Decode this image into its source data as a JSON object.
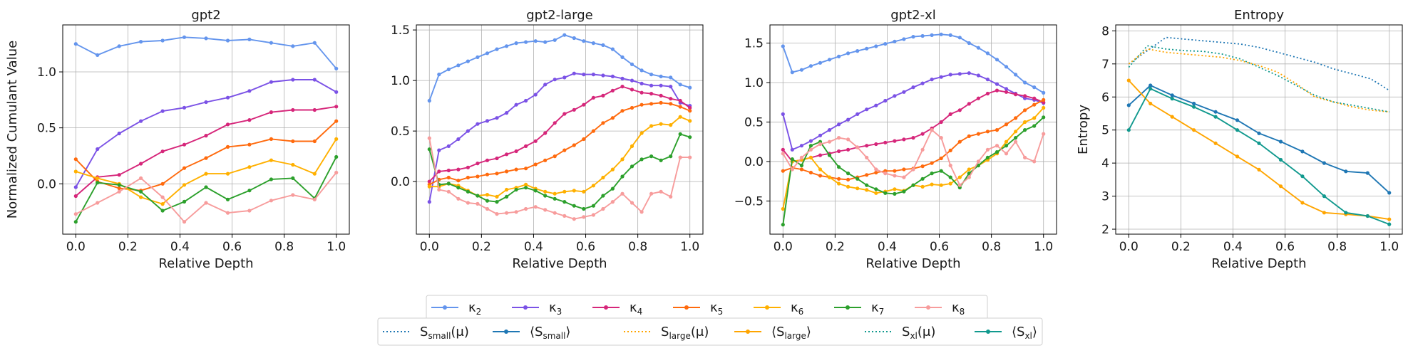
{
  "chart_data": [
    {
      "type": "line",
      "title": "gpt2",
      "xlabel": "Relative Depth",
      "ylabel": "Normalized Cumulant Value",
      "xlim": [
        -0.05,
        1.05
      ],
      "ylim": [
        -0.45,
        1.42
      ],
      "xticks": [
        0.0,
        0.2,
        0.4,
        0.6,
        0.8,
        1.0
      ],
      "xtick_labels": [
        "0.0",
        "0.2",
        "0.4",
        "0.6",
        "0.8",
        "1.0"
      ],
      "yticks": [
        0.0,
        0.5,
        1.0
      ],
      "ytick_labels": [
        "0.0",
        "0.5",
        "1.0"
      ],
      "grid": true,
      "series": [
        {
          "name": "κ2",
          "values": [
            1.25,
            1.15,
            1.23,
            1.27,
            1.28,
            1.31,
            1.3,
            1.28,
            1.29,
            1.26,
            1.23,
            1.26,
            1.03
          ]
        },
        {
          "name": "κ3",
          "values": [
            -0.03,
            0.31,
            0.45,
            0.56,
            0.65,
            0.68,
            0.73,
            0.77,
            0.83,
            0.91,
            0.93,
            0.93,
            0.82
          ]
        },
        {
          "name": "κ4",
          "values": [
            -0.11,
            0.06,
            0.08,
            0.18,
            0.29,
            0.35,
            0.43,
            0.53,
            0.57,
            0.64,
            0.66,
            0.66,
            0.69
          ]
        },
        {
          "name": "κ5",
          "values": [
            0.22,
            0.02,
            -0.04,
            -0.06,
            0.0,
            0.14,
            0.23,
            0.33,
            0.35,
            0.4,
            0.38,
            0.38,
            0.56
          ]
        },
        {
          "name": "κ6",
          "values": [
            0.11,
            0.05,
            0.0,
            -0.12,
            -0.18,
            -0.01,
            0.09,
            0.09,
            0.15,
            0.21,
            0.17,
            0.09,
            0.4
          ]
        },
        {
          "name": "κ7",
          "values": [
            -0.34,
            0.01,
            -0.01,
            -0.07,
            -0.24,
            -0.16,
            -0.03,
            -0.14,
            -0.06,
            0.04,
            0.05,
            -0.13,
            0.24
          ]
        },
        {
          "name": "κ8",
          "values": [
            -0.27,
            -0.17,
            -0.07,
            0.05,
            -0.12,
            -0.34,
            -0.17,
            -0.26,
            -0.24,
            -0.15,
            -0.1,
            -0.14,
            0.1
          ]
        }
      ]
    },
    {
      "type": "line",
      "title": "gpt2-large",
      "xlabel": "Relative Depth",
      "ylabel": "",
      "xlim": [
        -0.05,
        1.05
      ],
      "ylim": [
        -0.52,
        1.55
      ],
      "xticks": [
        0.0,
        0.2,
        0.4,
        0.6,
        0.8,
        1.0
      ],
      "xtick_labels": [
        "0.0",
        "0.2",
        "0.4",
        "0.6",
        "0.8",
        "1.0"
      ],
      "yticks": [
        0.0,
        0.5,
        1.0,
        1.5
      ],
      "ytick_labels": [
        "0.0",
        "0.5",
        "1.0",
        "1.5"
      ],
      "grid": true,
      "series": [
        {
          "name": "κ2",
          "values": [
            0.8,
            1.06,
            1.11,
            1.15,
            1.19,
            1.23,
            1.27,
            1.31,
            1.34,
            1.37,
            1.38,
            1.39,
            1.38,
            1.4,
            1.45,
            1.42,
            1.39,
            1.37,
            1.35,
            1.31,
            1.23,
            1.16,
            1.1,
            1.06,
            1.04,
            1.03,
            0.96,
            0.93
          ]
        },
        {
          "name": "κ3",
          "values": [
            -0.2,
            0.31,
            0.35,
            0.42,
            0.5,
            0.57,
            0.6,
            0.63,
            0.68,
            0.76,
            0.8,
            0.86,
            0.96,
            1.01,
            1.03,
            1.07,
            1.06,
            1.06,
            1.05,
            1.04,
            1.02,
            1.0,
            0.97,
            0.95,
            0.95,
            0.94,
            0.78,
            0.75
          ]
        },
        {
          "name": "κ4",
          "values": [
            0.0,
            0.1,
            0.11,
            0.12,
            0.14,
            0.18,
            0.21,
            0.23,
            0.27,
            0.3,
            0.35,
            0.4,
            0.48,
            0.58,
            0.67,
            0.71,
            0.76,
            0.83,
            0.85,
            0.9,
            0.94,
            0.91,
            0.88,
            0.87,
            0.85,
            0.82,
            0.8,
            0.73
          ]
        },
        {
          "name": "κ5",
          "values": [
            -0.03,
            0.02,
            0.04,
            0.01,
            0.04,
            0.05,
            0.07,
            0.08,
            0.1,
            0.12,
            0.13,
            0.17,
            0.21,
            0.25,
            0.31,
            0.36,
            0.42,
            0.5,
            0.58,
            0.63,
            0.7,
            0.73,
            0.76,
            0.77,
            0.78,
            0.77,
            0.74,
            0.7
          ]
        },
        {
          "name": "κ6",
          "values": [
            -0.05,
            -0.05,
            -0.02,
            -0.04,
            -0.09,
            -0.14,
            -0.13,
            -0.15,
            -0.08,
            -0.06,
            -0.03,
            -0.07,
            -0.1,
            -0.12,
            -0.1,
            -0.09,
            -0.1,
            -0.04,
            0.04,
            0.12,
            0.22,
            0.35,
            0.48,
            0.55,
            0.57,
            0.56,
            0.64,
            0.6
          ]
        },
        {
          "name": "κ7",
          "values": [
            0.32,
            -0.03,
            -0.02,
            -0.06,
            -0.1,
            -0.14,
            -0.19,
            -0.2,
            -0.15,
            -0.08,
            -0.06,
            -0.09,
            -0.14,
            -0.17,
            -0.2,
            -0.24,
            -0.27,
            -0.24,
            -0.14,
            -0.07,
            0.05,
            0.15,
            0.22,
            0.25,
            0.21,
            0.25,
            0.47,
            0.44
          ]
        },
        {
          "name": "κ8",
          "values": [
            0.43,
            -0.08,
            -0.1,
            -0.17,
            -0.21,
            -0.22,
            -0.27,
            -0.32,
            -0.31,
            -0.3,
            -0.27,
            -0.25,
            -0.28,
            -0.31,
            -0.34,
            -0.37,
            -0.35,
            -0.33,
            -0.27,
            -0.2,
            -0.12,
            -0.21,
            -0.3,
            -0.12,
            -0.1,
            -0.15,
            0.24,
            0.24
          ]
        }
      ]
    },
    {
      "type": "line",
      "title": "gpt2-xl",
      "xlabel": "Relative Depth",
      "ylabel": "",
      "xlim": [
        -0.05,
        1.05
      ],
      "ylim": [
        -0.92,
        1.73
      ],
      "xticks": [
        0.0,
        0.2,
        0.4,
        0.6,
        0.8,
        1.0
      ],
      "xtick_labels": [
        "0.0",
        "0.2",
        "0.4",
        "0.6",
        "0.8",
        "1.0"
      ],
      "yticks": [
        -0.5,
        0.0,
        0.5,
        1.0,
        1.5
      ],
      "ytick_labels": [
        "−0.5",
        "0.0",
        "0.5",
        "1.0",
        "1.5"
      ],
      "grid": true,
      "series": [
        {
          "name": "κ2",
          "values": [
            1.46,
            1.13,
            1.16,
            1.21,
            1.25,
            1.29,
            1.33,
            1.37,
            1.4,
            1.43,
            1.46,
            1.49,
            1.52,
            1.55,
            1.58,
            1.59,
            1.6,
            1.61,
            1.6,
            1.57,
            1.5,
            1.44,
            1.37,
            1.29,
            1.2,
            1.1,
            1.0,
            0.94,
            0.87
          ]
        },
        {
          "name": "κ3",
          "values": [
            0.6,
            0.15,
            0.2,
            0.26,
            0.33,
            0.4,
            0.47,
            0.53,
            0.6,
            0.66,
            0.71,
            0.77,
            0.83,
            0.88,
            0.94,
            0.99,
            1.04,
            1.07,
            1.1,
            1.11,
            1.12,
            1.09,
            1.04,
            0.98,
            0.92,
            0.86,
            0.8,
            0.78,
            0.74
          ]
        },
        {
          "name": "κ4",
          "values": [
            0.15,
            0.0,
            0.02,
            0.05,
            0.08,
            0.1,
            0.13,
            0.15,
            0.18,
            0.2,
            0.22,
            0.24,
            0.26,
            0.28,
            0.3,
            0.35,
            0.42,
            0.5,
            0.6,
            0.65,
            0.73,
            0.8,
            0.86,
            0.9,
            0.88,
            0.85,
            0.83,
            0.8,
            0.75
          ]
        },
        {
          "name": "κ5",
          "values": [
            -0.12,
            -0.08,
            -0.1,
            -0.14,
            -0.18,
            -0.2,
            -0.22,
            -0.23,
            -0.2,
            -0.17,
            -0.14,
            -0.12,
            -0.12,
            -0.1,
            -0.09,
            -0.06,
            -0.02,
            0.04,
            0.14,
            0.25,
            0.32,
            0.35,
            0.38,
            0.4,
            0.47,
            0.55,
            0.65,
            0.72,
            0.78
          ]
        },
        {
          "name": "κ6",
          "values": [
            -0.6,
            0.0,
            0.02,
            0.05,
            -0.1,
            -0.2,
            -0.28,
            -0.32,
            -0.34,
            -0.36,
            -0.4,
            -0.38,
            -0.35,
            -0.37,
            -0.3,
            -0.32,
            -0.29,
            -0.3,
            -0.28,
            -0.2,
            -0.1,
            -0.05,
            0.02,
            0.1,
            0.25,
            0.38,
            0.5,
            0.55,
            0.68
          ]
        },
        {
          "name": "κ7",
          "values": [
            -0.8,
            0.03,
            -0.05,
            0.2,
            0.25,
            0.08,
            -0.07,
            -0.15,
            -0.22,
            -0.3,
            -0.35,
            -0.4,
            -0.41,
            -0.38,
            -0.3,
            -0.22,
            -0.15,
            -0.12,
            -0.2,
            -0.33,
            -0.15,
            -0.05,
            0.05,
            0.12,
            0.2,
            0.3,
            0.4,
            0.45,
            0.56
          ]
        },
        {
          "name": "κ8",
          "values": [
            0.1,
            -0.1,
            0.05,
            0.15,
            0.22,
            0.25,
            0.3,
            0.28,
            0.18,
            0.05,
            -0.1,
            -0.15,
            -0.18,
            -0.2,
            -0.1,
            0.15,
            0.4,
            0.3,
            -0.05,
            -0.3,
            -0.2,
            0.0,
            0.15,
            0.2,
            0.1,
            0.25,
            0.05,
            0.0,
            0.35
          ]
        }
      ]
    },
    {
      "type": "line",
      "title": "Entropy",
      "xlabel": "Relative Depth",
      "ylabel": "Entropy",
      "xlim": [
        -0.05,
        1.05
      ],
      "ylim": [
        1.85,
        8.18
      ],
      "xticks": [
        0.0,
        0.2,
        0.4,
        0.6,
        0.8,
        1.0
      ],
      "xtick_labels": [
        "0.0",
        "0.2",
        "0.4",
        "0.6",
        "0.8",
        "1.0"
      ],
      "yticks": [
        2,
        3,
        4,
        5,
        6,
        7,
        8
      ],
      "ytick_labels": [
        "2",
        "3",
        "4",
        "5",
        "6",
        "7",
        "8"
      ],
      "grid": true,
      "series": [
        {
          "name": "S_small(μ)",
          "values": [
            7.0,
            7.4,
            7.8,
            7.75,
            7.7,
            7.65,
            7.6,
            7.5,
            7.35,
            7.2,
            7.05,
            6.85,
            6.7,
            6.55,
            6.2
          ]
        },
        {
          "name": "⟨S_small⟩",
          "values": [
            5.75,
            6.35,
            6.05,
            5.8,
            5.55,
            5.3,
            4.9,
            4.65,
            4.35,
            4.0,
            3.75,
            3.7,
            3.1
          ]
        },
        {
          "name": "S_large(μ)",
          "values": [
            7.0,
            7.45,
            7.35,
            7.3,
            7.25,
            7.2,
            7.1,
            6.95,
            6.75,
            6.4,
            6.0,
            5.85,
            5.7,
            5.6,
            5.55
          ]
        },
        {
          "name": "⟨S_large⟩",
          "values": [
            6.5,
            5.8,
            5.4,
            5.0,
            4.6,
            4.2,
            3.8,
            3.3,
            2.8,
            2.5,
            2.45,
            2.4,
            2.3
          ]
        },
        {
          "name": "S_xl(μ)",
          "values": [
            6.9,
            7.55,
            7.45,
            7.4,
            7.38,
            7.3,
            7.15,
            6.9,
            6.65,
            6.35,
            6.05,
            5.85,
            5.75,
            5.65,
            5.55
          ]
        },
        {
          "name": "⟨S_xl⟩",
          "values": [
            5.0,
            6.25,
            5.95,
            5.7,
            5.4,
            5.0,
            4.6,
            4.1,
            3.6,
            3.0,
            2.5,
            2.4,
            2.15
          ]
        }
      ]
    }
  ],
  "legends": {
    "row1": [
      {
        "base": "κ",
        "sub": "2",
        "color": "#6495ed",
        "style": "solid"
      },
      {
        "base": "κ",
        "sub": "3",
        "color": "#7b52e6",
        "style": "solid"
      },
      {
        "base": "κ",
        "sub": "4",
        "color": "#d6267a",
        "style": "solid"
      },
      {
        "base": "κ",
        "sub": "5",
        "color": "#ff6a0d",
        "style": "solid"
      },
      {
        "base": "κ",
        "sub": "6",
        "color": "#ffb000",
        "style": "solid"
      },
      {
        "base": "κ",
        "sub": "7",
        "color": "#2ca02c",
        "style": "solid"
      },
      {
        "base": "κ",
        "sub": "8",
        "color": "#f79c9c",
        "style": "solid"
      }
    ],
    "row2": [
      {
        "base": "S",
        "sub": "small",
        "suffix": "(μ)",
        "color": "#1f77b4",
        "style": "dotted"
      },
      {
        "base": "⟨S",
        "sub": "small",
        "suffix": "⟩",
        "color": "#1f77b4",
        "style": "solid"
      },
      {
        "base": "S",
        "sub": "large",
        "suffix": "(μ)",
        "color": "#ffa500",
        "style": "dotted"
      },
      {
        "base": "⟨S",
        "sub": "large",
        "suffix": "⟩",
        "color": "#ffa500",
        "style": "solid"
      },
      {
        "base": "S",
        "sub": "xl",
        "suffix": "(μ)",
        "color": "#11998e",
        "style": "dotted"
      },
      {
        "base": "⟨S",
        "sub": "xl",
        "suffix": "⟩",
        "color": "#11998e",
        "style": "solid"
      }
    ]
  },
  "colors": {
    "kappa": [
      "#6495ed",
      "#7b52e6",
      "#d6267a",
      "#ff6a0d",
      "#ffb000",
      "#2ca02c",
      "#f79c9c"
    ],
    "entropy": [
      "#1f77b4",
      "#1f77b4",
      "#ffa500",
      "#ffa500",
      "#11998e",
      "#11998e"
    ]
  }
}
